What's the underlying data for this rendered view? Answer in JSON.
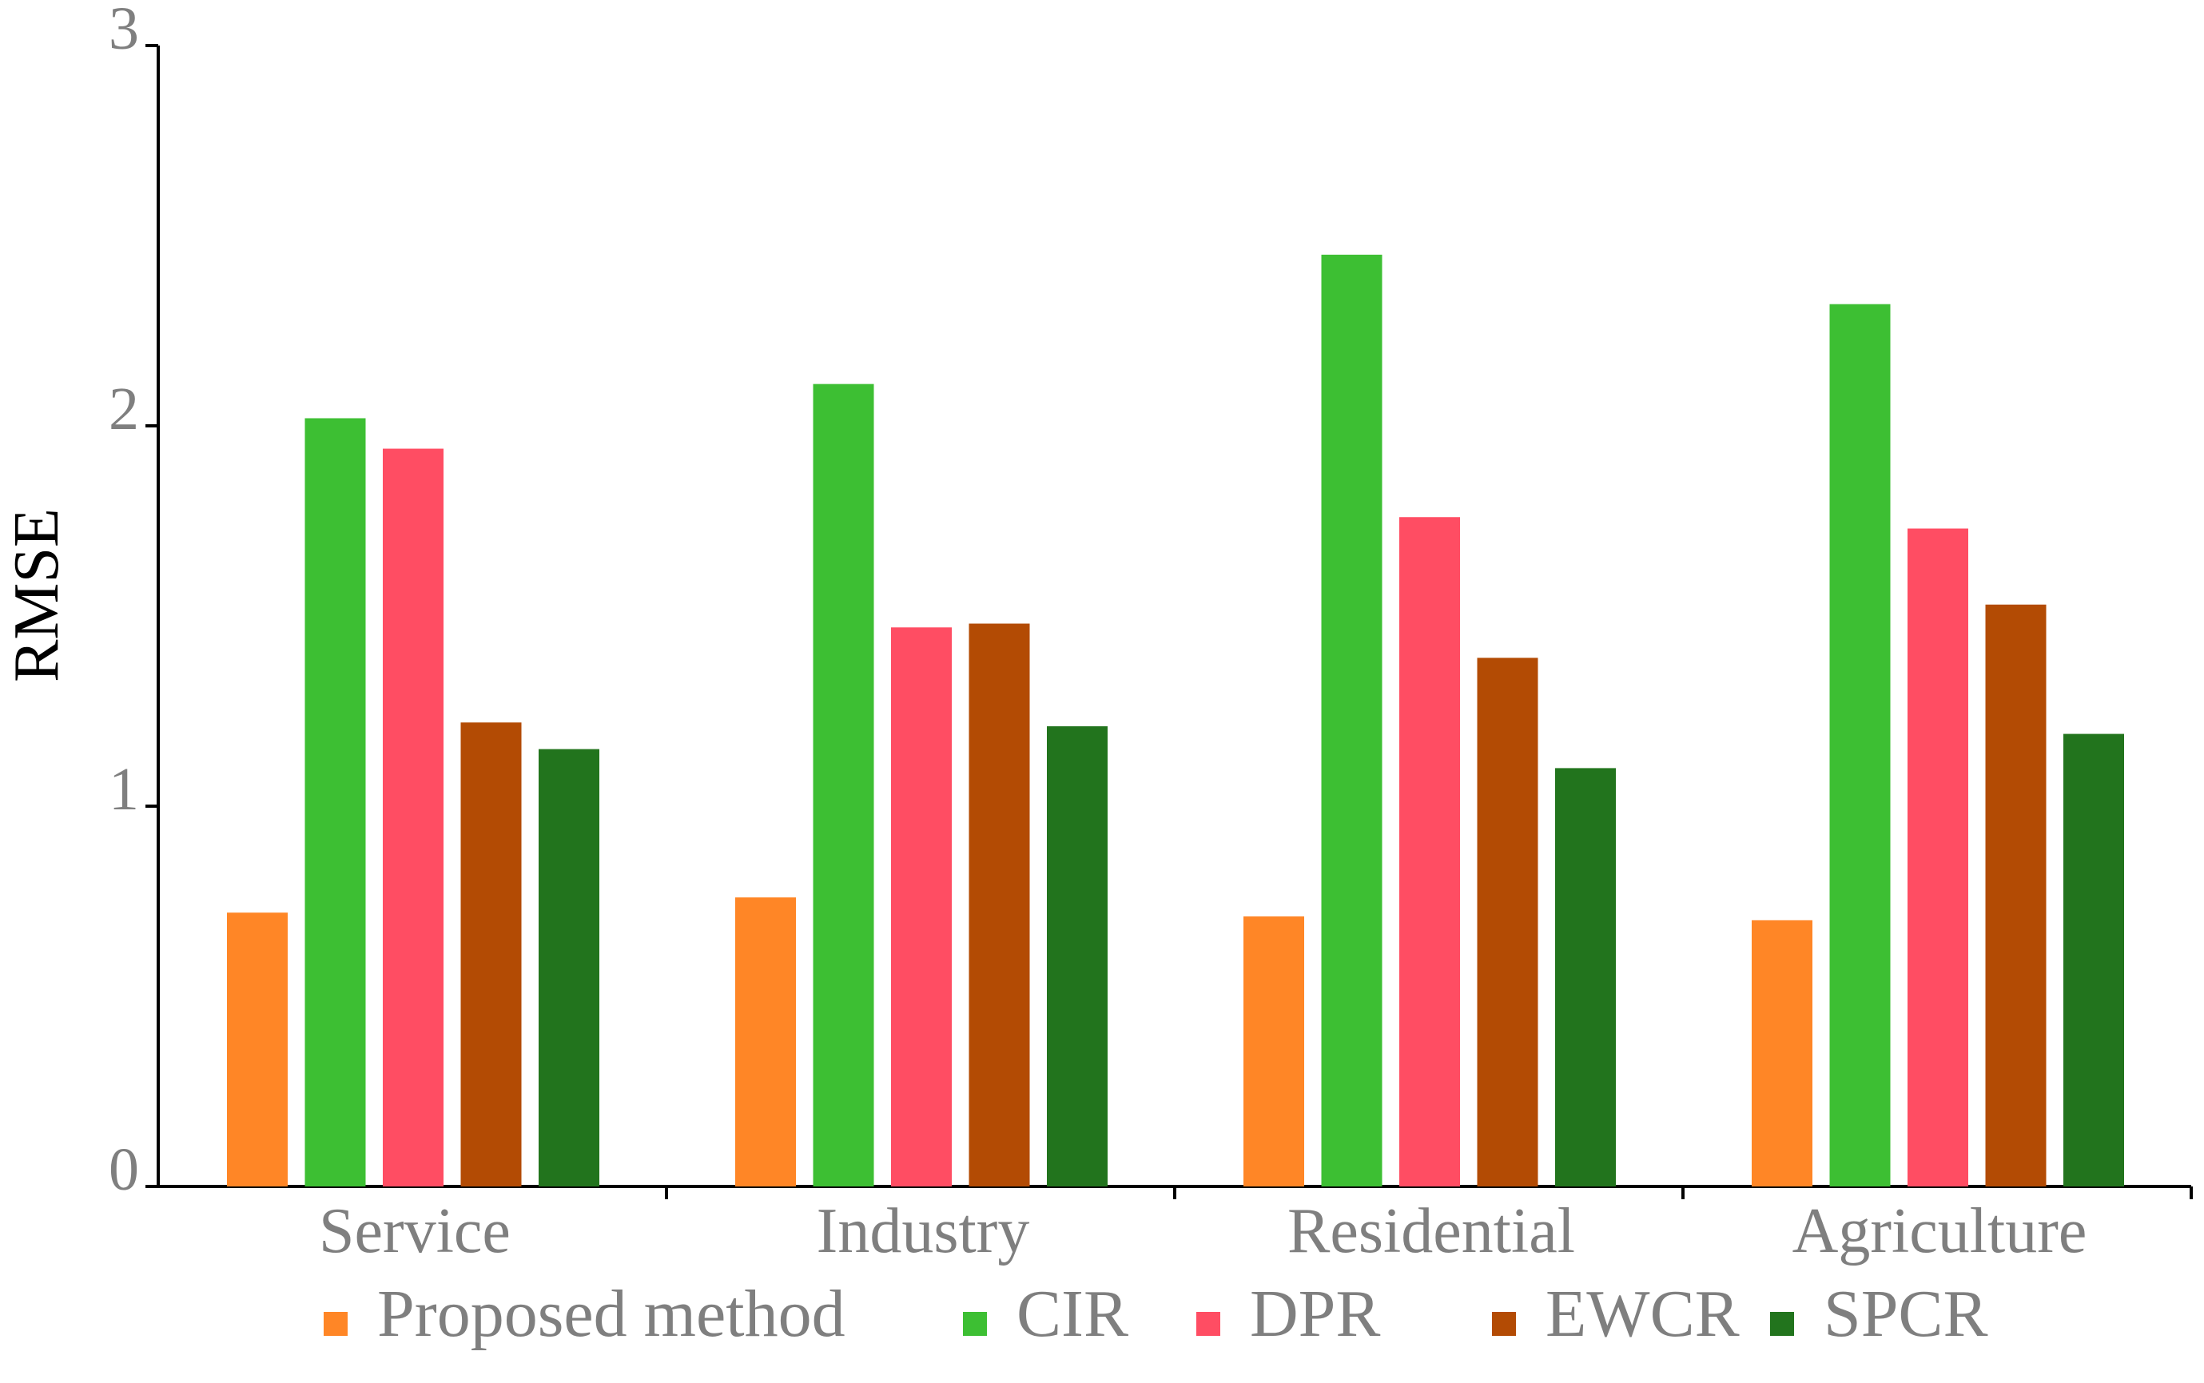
{
  "chart_data": {
    "type": "bar",
    "title": "",
    "xlabel": "",
    "ylabel": "RMSE",
    "ylim": [
      0,
      3
    ],
    "yticks": [
      "0",
      "1",
      "2",
      "3"
    ],
    "categories": [
      "Service",
      "Industry",
      "Residential",
      "Agriculture"
    ],
    "series": [
      {
        "name": "Proposed method",
        "color": "#ff8626",
        "values": [
          0.72,
          0.76,
          0.71,
          0.7
        ]
      },
      {
        "name": "CIR",
        "color": "#3dbf33",
        "values": [
          2.02,
          2.11,
          2.45,
          2.32
        ]
      },
      {
        "name": "DPR",
        "color": "#ff4d63",
        "values": [
          1.94,
          1.47,
          1.76,
          1.73
        ]
      },
      {
        "name": "EWCR",
        "color": "#b34b04",
        "values": [
          1.22,
          1.48,
          1.39,
          1.53
        ]
      },
      {
        "name": "SPCR",
        "color": "#22741d",
        "values": [
          1.15,
          1.21,
          1.1,
          1.19
        ]
      }
    ],
    "legend": "bottom",
    "grid": false
  }
}
